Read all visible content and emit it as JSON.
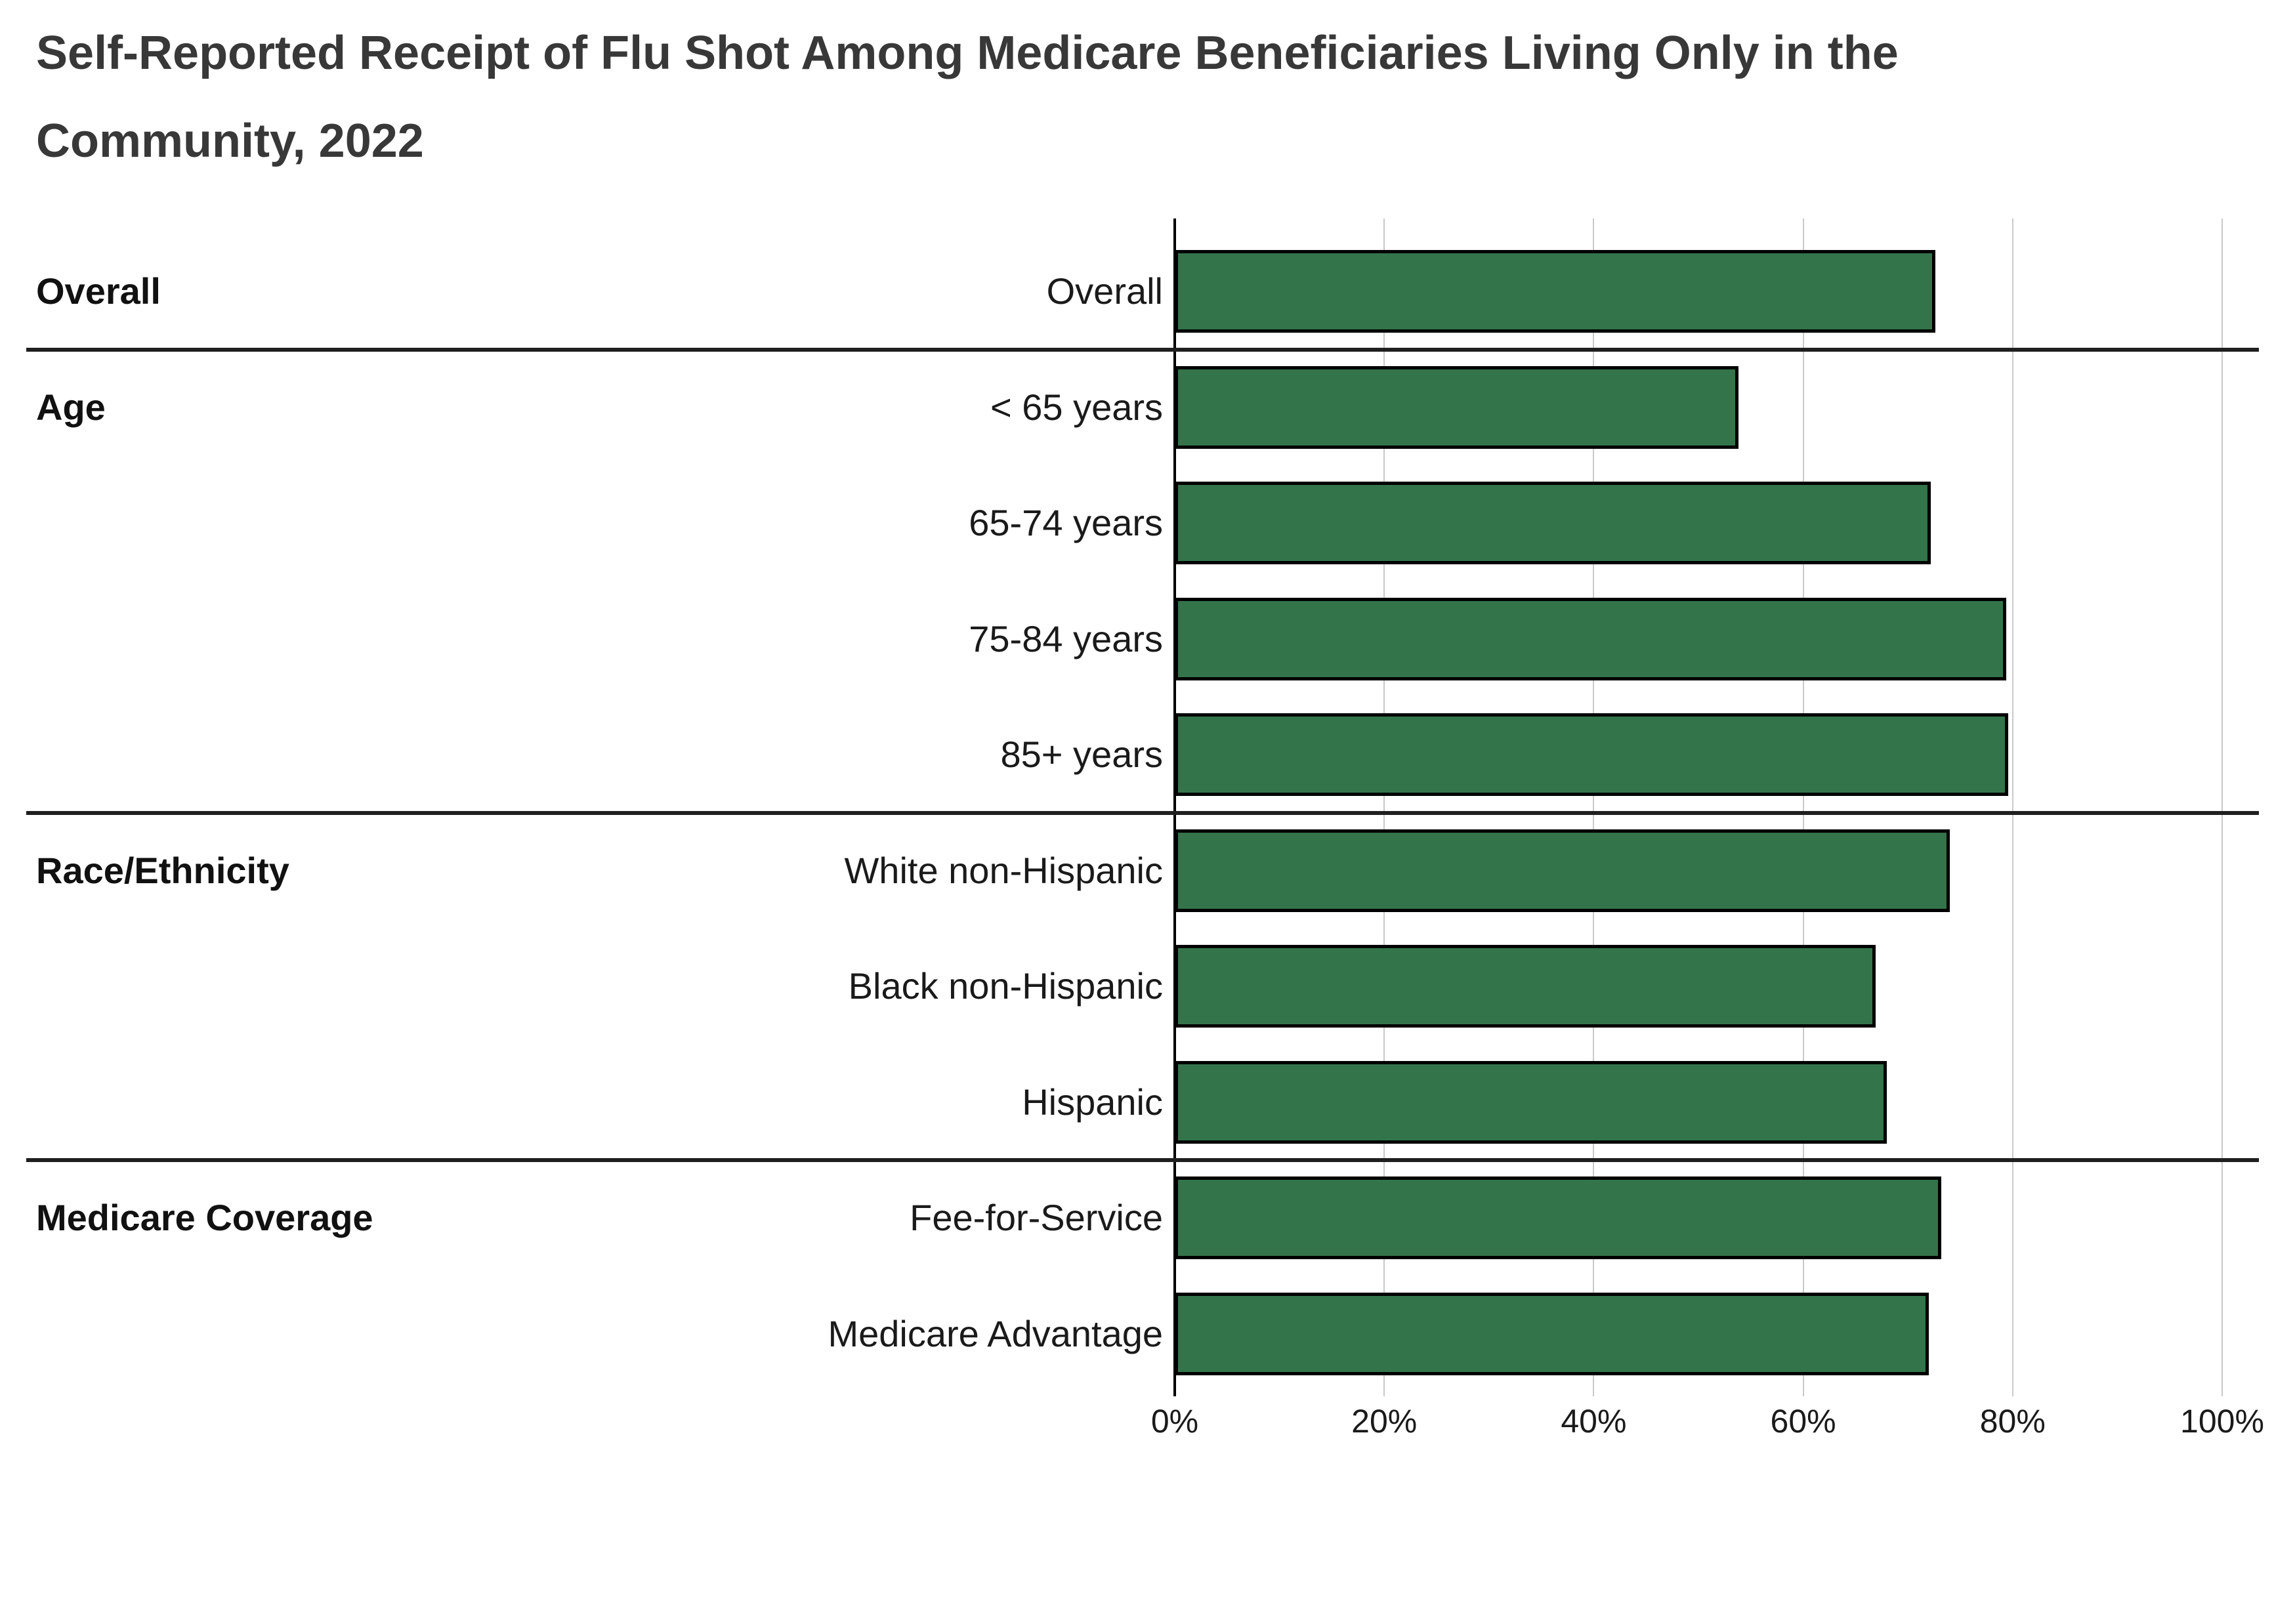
{
  "title": {
    "line1": "Self-Reported Receipt of Flu Shot Among Medicare Beneficiaries Living Only in the",
    "line2": "Community, 2022"
  },
  "chart_data": {
    "type": "bar",
    "orientation": "horizontal",
    "title": "Self-Reported Receipt of Flu Shot Among Medicare Beneficiaries Living Only in the Community, 2022",
    "value_unit": "percent",
    "xlim": [
      0,
      100
    ],
    "x_ticks": [
      "0%",
      "20%",
      "40%",
      "60%",
      "80%",
      "100%"
    ],
    "x_tick_values": [
      0,
      20,
      40,
      60,
      80,
      100
    ],
    "grid": true,
    "legend": false,
    "bar_color": "#33744A",
    "bar_border_color": "#000000",
    "gridline_color": "#c9c9c9",
    "axis_color": "#000000",
    "divider_color": "#1f1f1f",
    "groups": [
      {
        "label": "Overall",
        "rows": [
          {
            "label": "Overall",
            "value": 72.6
          }
        ]
      },
      {
        "label": "Age",
        "rows": [
          {
            "label": "< 65 years",
            "value": 53.8
          },
          {
            "label": "65-74 years",
            "value": 72.2
          },
          {
            "label": "75-84 years",
            "value": 79.4
          },
          {
            "label": "85+ years",
            "value": 79.6
          }
        ]
      },
      {
        "label": "Race/Ethnicity",
        "rows": [
          {
            "label": "White non-Hispanic",
            "value": 74.0
          },
          {
            "label": "Black non-Hispanic",
            "value": 66.9
          },
          {
            "label": "Hispanic",
            "value": 68.0
          }
        ]
      },
      {
        "label": "Medicare Coverage",
        "rows": [
          {
            "label": "Fee-for-Service",
            "value": 73.2
          },
          {
            "label": "Medicare Advantage",
            "value": 72.0
          }
        ]
      }
    ]
  }
}
